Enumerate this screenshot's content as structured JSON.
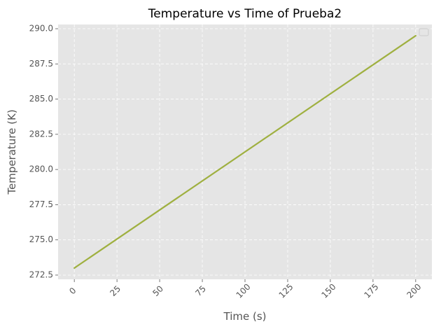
{
  "chart_data": {
    "type": "line",
    "title": "Temperature vs Time of Prueba2",
    "xlabel": "Time (s)",
    "ylabel": "Temperature (K)",
    "xlim": [
      -9.5,
      209.5
    ],
    "ylim": [
      272.2,
      290.3
    ],
    "xticks": [
      0,
      25,
      50,
      75,
      100,
      125,
      150,
      175,
      200
    ],
    "xtick_labels": [
      "0",
      "25",
      "50",
      "75",
      "100",
      "125",
      "150",
      "175",
      "200"
    ],
    "yticks": [
      272.5,
      275.0,
      277.5,
      280.0,
      282.5,
      285.0,
      287.5,
      290.0
    ],
    "ytick_labels": [
      "272.5",
      "275.0",
      "277.5",
      "280.0",
      "282.5",
      "285.0",
      "287.5",
      "290.0"
    ],
    "grid": true,
    "legend": "upper right (empty)",
    "series": [
      {
        "color": "#9fb040",
        "x": [
          0,
          200
        ],
        "y": [
          273.0,
          289.5
        ]
      }
    ]
  },
  "colors": {
    "axes_background": "#e5e5e5",
    "grid": "#ffffff",
    "tick_text": "#555555",
    "title_text": "#000000"
  }
}
